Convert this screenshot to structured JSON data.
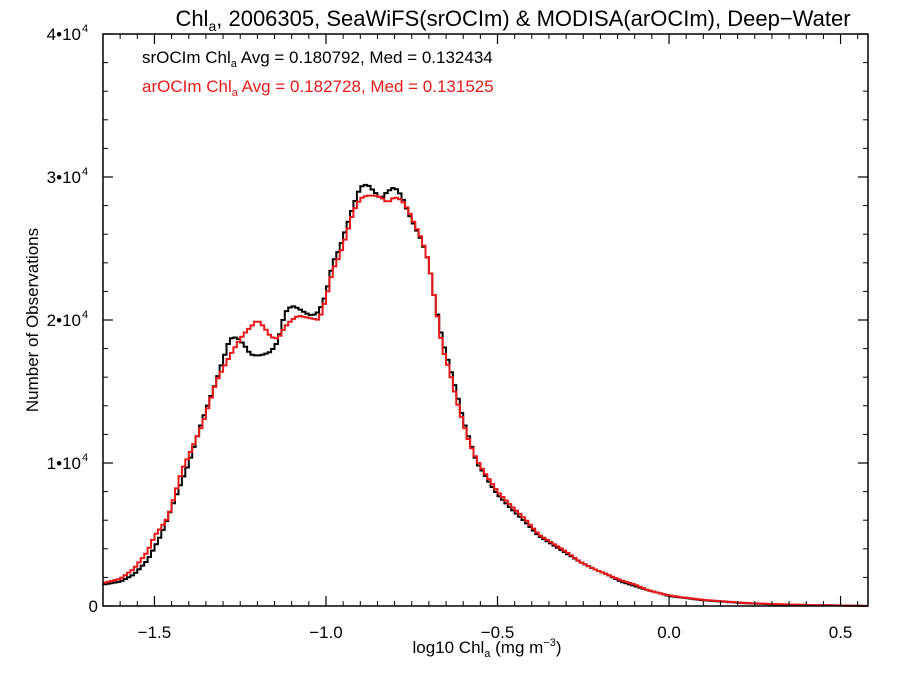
{
  "chart_data": {
    "type": "line",
    "title": {
      "pre": "Chl",
      "sub": "a",
      "post": ", 2006305, SeaWiFS(srOCIm) & MODISA(arOCIm), Deep−Water"
    },
    "xlabel": {
      "pre": "log10 Chl",
      "sub": "a",
      "mid": " (mg m",
      "sup": "−3",
      "post": ")"
    },
    "ylabel": "Number of Observations",
    "xlim": [
      -1.65,
      0.58
    ],
    "ylim": [
      0,
      40000
    ],
    "x_ticks": [
      {
        "v": -1.5,
        "label": "−1.5"
      },
      {
        "v": -1.0,
        "label": "−1.0"
      },
      {
        "v": -0.5,
        "label": "−0.5"
      },
      {
        "v": 0.0,
        "label": "0.0"
      },
      {
        "v": 0.5,
        "label": "0.5"
      }
    ],
    "y_ticks": [
      {
        "v": 0,
        "label": "0",
        "exp": false
      },
      {
        "v": 10000,
        "label": "1•10",
        "exp": true
      },
      {
        "v": 20000,
        "label": "2•10",
        "exp": true
      },
      {
        "v": 30000,
        "label": "3•10",
        "exp": true
      },
      {
        "v": 40000,
        "label": "4•10",
        "exp": true
      }
    ],
    "y_tick_exponent": "4",
    "annotations": [
      {
        "pre": "srOCIm Chl",
        "sub": "a",
        "post": " Avg = 0.180792, Med = 0.132434",
        "color": "#000000"
      },
      {
        "pre": "arOCIm Chl",
        "sub": "a",
        "post": " Avg = 0.182728, Med = 0.131525",
        "color": "#e8191b"
      }
    ],
    "series": [
      {
        "color": "#000000",
        "x": [
          -1.65,
          -1.6,
          -1.56,
          -1.52,
          -1.48,
          -1.44,
          -1.4,
          -1.36,
          -1.32,
          -1.28,
          -1.26,
          -1.24,
          -1.22,
          -1.2,
          -1.18,
          -1.16,
          -1.14,
          -1.12,
          -1.1,
          -1.08,
          -1.06,
          -1.04,
          -1.02,
          -1.0,
          -0.98,
          -0.96,
          -0.94,
          -0.92,
          -0.9,
          -0.88,
          -0.86,
          -0.84,
          -0.82,
          -0.8,
          -0.78,
          -0.76,
          -0.74,
          -0.72,
          -0.7,
          -0.68,
          -0.66,
          -0.64,
          -0.62,
          -0.6,
          -0.58,
          -0.56,
          -0.54,
          -0.52,
          -0.5,
          -0.46,
          -0.42,
          -0.38,
          -0.34,
          -0.3,
          -0.26,
          -0.22,
          -0.18,
          -0.14,
          -0.1,
          -0.06,
          -0.02,
          0.0,
          0.04,
          0.1,
          0.16,
          0.22,
          0.3,
          0.38,
          0.46,
          0.54,
          0.58
        ],
        "y": [
          1500,
          1700,
          2200,
          3200,
          5000,
          7500,
          10000,
          13000,
          15700,
          18700,
          18800,
          18300,
          17600,
          17500,
          17600,
          17800,
          18500,
          20500,
          21000,
          20800,
          20500,
          20300,
          20600,
          21800,
          24000,
          25000,
          26500,
          28000,
          29300,
          29500,
          29000,
          28500,
          29000,
          29300,
          28700,
          27500,
          26500,
          25500,
          24000,
          21000,
          18500,
          16800,
          15000,
          13000,
          11500,
          10000,
          9300,
          8500,
          7800,
          6800,
          5900,
          4900,
          4300,
          3700,
          3100,
          2600,
          2200,
          1700,
          1400,
          1100,
          850,
          700,
          580,
          400,
          300,
          200,
          120,
          80,
          50,
          20,
          0
        ]
      },
      {
        "color": "#e8191b",
        "x": [
          -1.65,
          -1.6,
          -1.56,
          -1.52,
          -1.5,
          -1.48,
          -1.46,
          -1.44,
          -1.42,
          -1.4,
          -1.36,
          -1.32,
          -1.28,
          -1.26,
          -1.24,
          -1.22,
          -1.2,
          -1.18,
          -1.16,
          -1.14,
          -1.12,
          -1.1,
          -1.08,
          -1.06,
          -1.04,
          -1.02,
          -1.0,
          -0.98,
          -0.96,
          -0.94,
          -0.92,
          -0.9,
          -0.88,
          -0.86,
          -0.84,
          -0.82,
          -0.8,
          -0.78,
          -0.76,
          -0.74,
          -0.72,
          -0.7,
          -0.68,
          -0.66,
          -0.64,
          -0.62,
          -0.6,
          -0.58,
          -0.56,
          -0.54,
          -0.52,
          -0.5,
          -0.46,
          -0.42,
          -0.38,
          -0.34,
          -0.3,
          -0.26,
          -0.22,
          -0.18,
          -0.14,
          -0.1,
          -0.06,
          -0.02,
          0.0,
          0.04,
          0.1,
          0.16,
          0.22,
          0.3,
          0.38,
          0.46,
          0.54,
          0.58
        ],
        "y": [
          1600,
          1900,
          2600,
          3800,
          4900,
          5500,
          6200,
          7800,
          9500,
          10500,
          12700,
          15700,
          17500,
          18300,
          19000,
          19500,
          20000,
          19500,
          18800,
          18700,
          19500,
          20000,
          20300,
          20200,
          20100,
          20000,
          21500,
          23500,
          24500,
          26000,
          27600,
          28500,
          28700,
          28700,
          28600,
          28200,
          28600,
          28400,
          27700,
          26600,
          25600,
          24000,
          21000,
          18000,
          16500,
          14500,
          12800,
          11300,
          10200,
          9400,
          8700,
          8000,
          7000,
          6100,
          5000,
          4400,
          3800,
          3100,
          2600,
          2200,
          1800,
          1500,
          1100,
          850,
          750,
          600,
          430,
          320,
          220,
          140,
          90,
          50,
          20,
          0
        ]
      }
    ]
  }
}
